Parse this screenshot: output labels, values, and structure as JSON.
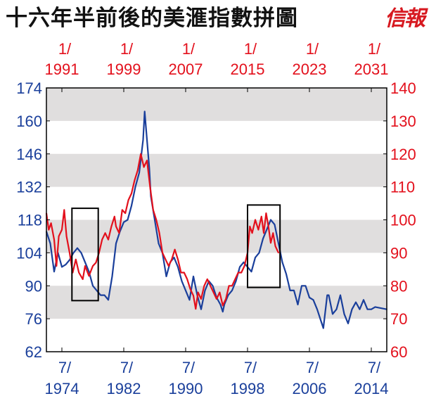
{
  "title": "十六年半前後的美滙指數拼圖",
  "logo": "信報",
  "colors": {
    "blue": "#1a3f9b",
    "red": "#e3101c",
    "band": "#e0dede",
    "frame": "#000000"
  },
  "chart_data": {
    "type": "line",
    "title": "十六年半前後的美滙指數拼圖",
    "grid": "alternating grey horizontal bands",
    "left_axis": {
      "color": "blue",
      "range": [
        62,
        174
      ],
      "ticks": [
        "174",
        "160",
        "146",
        "132",
        "118",
        "104",
        "90",
        "76",
        "62"
      ]
    },
    "right_axis": {
      "color": "red",
      "range": [
        60,
        140
      ],
      "ticks": [
        "140",
        "130",
        "120",
        "110",
        "100",
        "90",
        "80",
        "70",
        "60"
      ]
    },
    "bottom_axis": {
      "color": "blue",
      "range": [
        1972.5,
        2016.5
      ],
      "ticks": [
        {
          "month": "7/",
          "year": "1974",
          "x": 1974.5
        },
        {
          "month": "7/",
          "year": "1982",
          "x": 1982.5
        },
        {
          "month": "7/",
          "year": "1990",
          "x": 1990.5
        },
        {
          "month": "7/",
          "year": "1998",
          "x": 1998.5
        },
        {
          "month": "7/",
          "year": "2006",
          "x": 2006.5
        },
        {
          "month": "7/",
          "year": "2014",
          "x": 2014.5
        }
      ]
    },
    "top_axis": {
      "color": "red",
      "range": [
        1989,
        2033
      ],
      "ticks": [
        {
          "month": "1/",
          "year": "1991",
          "x": 1991
        },
        {
          "month": "1/",
          "year": "1999",
          "x": 1999
        },
        {
          "month": "1/",
          "year": "2007",
          "x": 2007
        },
        {
          "month": "1/",
          "year": "2015",
          "x": 2015
        },
        {
          "month": "1/",
          "year": "2023",
          "x": 2023
        },
        {
          "month": "1/",
          "year": "2031",
          "x": 2031
        }
      ]
    },
    "series": [
      {
        "axis": "bottom-left",
        "color": "blue",
        "points": [
          [
            1972.5,
            113
          ],
          [
            1973.0,
            108
          ],
          [
            1973.5,
            96
          ],
          [
            1974.0,
            104
          ],
          [
            1974.5,
            98
          ],
          [
            1975.0,
            99
          ],
          [
            1975.5,
            101
          ],
          [
            1976.0,
            104
          ],
          [
            1976.5,
            106
          ],
          [
            1977.0,
            104
          ],
          [
            1977.5,
            100
          ],
          [
            1978.0,
            96
          ],
          [
            1978.5,
            90
          ],
          [
            1979.0,
            88
          ],
          [
            1979.5,
            86
          ],
          [
            1980.0,
            86
          ],
          [
            1980.5,
            84
          ],
          [
            1981.0,
            94
          ],
          [
            1981.5,
            108
          ],
          [
            1982.0,
            113
          ],
          [
            1982.5,
            117
          ],
          [
            1983.0,
            118
          ],
          [
            1983.5,
            124
          ],
          [
            1984.0,
            132
          ],
          [
            1984.5,
            138
          ],
          [
            1985.0,
            152
          ],
          [
            1985.2,
            164
          ],
          [
            1985.5,
            152
          ],
          [
            1985.8,
            140
          ],
          [
            1986.0,
            128
          ],
          [
            1986.5,
            118
          ],
          [
            1987.0,
            108
          ],
          [
            1987.5,
            104
          ],
          [
            1988.0,
            94
          ],
          [
            1988.5,
            100
          ],
          [
            1989.0,
            102
          ],
          [
            1989.5,
            98
          ],
          [
            1990.0,
            92
          ],
          [
            1990.5,
            88
          ],
          [
            1991.0,
            84
          ],
          [
            1991.5,
            94
          ],
          [
            1992.0,
            86
          ],
          [
            1992.5,
            80
          ],
          [
            1993.0,
            88
          ],
          [
            1993.5,
            92
          ],
          [
            1994.0,
            90
          ],
          [
            1994.5,
            85
          ],
          [
            1995.0,
            82
          ],
          [
            1995.3,
            79
          ],
          [
            1995.5,
            82
          ],
          [
            1996.0,
            86
          ],
          [
            1996.5,
            88
          ],
          [
            1997.0,
            92
          ],
          [
            1997.5,
            98
          ],
          [
            1998.0,
            100
          ],
          [
            1998.5,
            98
          ],
          [
            1999.0,
            96
          ],
          [
            1999.5,
            102
          ],
          [
            2000.0,
            104
          ],
          [
            2000.5,
            110
          ],
          [
            2001.0,
            114
          ],
          [
            2001.5,
            118
          ],
          [
            2002.0,
            116
          ],
          [
            2002.5,
            108
          ],
          [
            2003.0,
            100
          ],
          [
            2003.5,
            95
          ],
          [
            2004.0,
            88
          ],
          [
            2004.5,
            88
          ],
          [
            2005.0,
            82
          ],
          [
            2005.5,
            90
          ],
          [
            2006.0,
            90
          ],
          [
            2006.5,
            85
          ],
          [
            2007.0,
            84
          ],
          [
            2007.5,
            80
          ],
          [
            2008.0,
            75
          ],
          [
            2008.3,
            72
          ],
          [
            2008.8,
            86
          ],
          [
            2009.0,
            86
          ],
          [
            2009.5,
            78
          ],
          [
            2010.0,
            80
          ],
          [
            2010.5,
            86
          ],
          [
            2011.0,
            78
          ],
          [
            2011.5,
            74
          ],
          [
            2012.0,
            80
          ],
          [
            2012.5,
            83
          ],
          [
            2013.0,
            80
          ],
          [
            2013.5,
            84
          ],
          [
            2014.0,
            80
          ],
          [
            2014.5,
            80
          ],
          [
            2015.0,
            81
          ],
          [
            2016.5,
            80
          ]
        ]
      },
      {
        "axis": "top-right",
        "color": "red",
        "points": [
          [
            1989.0,
            102
          ],
          [
            1989.3,
            97
          ],
          [
            1989.6,
            99
          ],
          [
            1990.0,
            94
          ],
          [
            1990.3,
            86
          ],
          [
            1990.6,
            95
          ],
          [
            1991.0,
            97
          ],
          [
            1991.3,
            103
          ],
          [
            1991.6,
            95
          ],
          [
            1992.0,
            90
          ],
          [
            1992.4,
            84
          ],
          [
            1992.8,
            88
          ],
          [
            1993.2,
            84
          ],
          [
            1993.7,
            82
          ],
          [
            1994.0,
            86
          ],
          [
            1994.5,
            83
          ],
          [
            1995.0,
            86
          ],
          [
            1995.4,
            87
          ],
          [
            1995.8,
            90
          ],
          [
            1996.2,
            94
          ],
          [
            1996.6,
            96
          ],
          [
            1997.0,
            94
          ],
          [
            1997.4,
            98
          ],
          [
            1997.8,
            101
          ],
          [
            1998.0,
            98
          ],
          [
            1998.4,
            96
          ],
          [
            1998.8,
            103
          ],
          [
            1999.2,
            102
          ],
          [
            1999.6,
            106
          ],
          [
            2000.0,
            108
          ],
          [
            2000.4,
            112
          ],
          [
            2000.8,
            115
          ],
          [
            2001.2,
            120
          ],
          [
            2001.6,
            116
          ],
          [
            2002.0,
            118
          ],
          [
            2002.4,
            110
          ],
          [
            2002.8,
            103
          ],
          [
            2003.2,
            100
          ],
          [
            2003.6,
            96
          ],
          [
            2004.0,
            90
          ],
          [
            2004.4,
            88
          ],
          [
            2004.8,
            86
          ],
          [
            2005.2,
            88
          ],
          [
            2005.6,
            91
          ],
          [
            2006.0,
            88
          ],
          [
            2006.4,
            84
          ],
          [
            2006.8,
            84
          ],
          [
            2007.2,
            82
          ],
          [
            2007.6,
            79
          ],
          [
            2008.0,
            77
          ],
          [
            2008.3,
            73
          ],
          [
            2008.6,
            78
          ],
          [
            2009.0,
            76
          ],
          [
            2009.4,
            80
          ],
          [
            2009.8,
            82
          ],
          [
            2010.2,
            80
          ],
          [
            2010.6,
            78
          ],
          [
            2011.0,
            76
          ],
          [
            2011.4,
            78
          ],
          [
            2011.8,
            74
          ],
          [
            2012.2,
            76
          ],
          [
            2012.6,
            80
          ],
          [
            2013.0,
            80
          ],
          [
            2013.4,
            82
          ],
          [
            2013.8,
            84
          ],
          [
            2014.2,
            84
          ],
          [
            2014.6,
            86
          ],
          [
            2015.0,
            90
          ],
          [
            2015.3,
            98
          ],
          [
            2015.6,
            96
          ],
          [
            2016.0,
            100
          ],
          [
            2016.4,
            97
          ],
          [
            2016.8,
            101
          ],
          [
            2017.1,
            96
          ],
          [
            2017.4,
            102
          ],
          [
            2017.7,
            98
          ],
          [
            2018.0,
            93
          ],
          [
            2018.3,
            96
          ],
          [
            2018.6,
            92
          ],
          [
            2019.0,
            90
          ]
        ]
      }
    ],
    "highlight_boxes": [
      {
        "axis": "top-right",
        "x": [
          1992.3,
          1995.7
        ],
        "y": [
          75.5,
          103.5
        ]
      },
      {
        "axis": "top-right",
        "x": [
          2015.0,
          2019.2
        ],
        "y": [
          79.5,
          104.5
        ]
      }
    ]
  }
}
